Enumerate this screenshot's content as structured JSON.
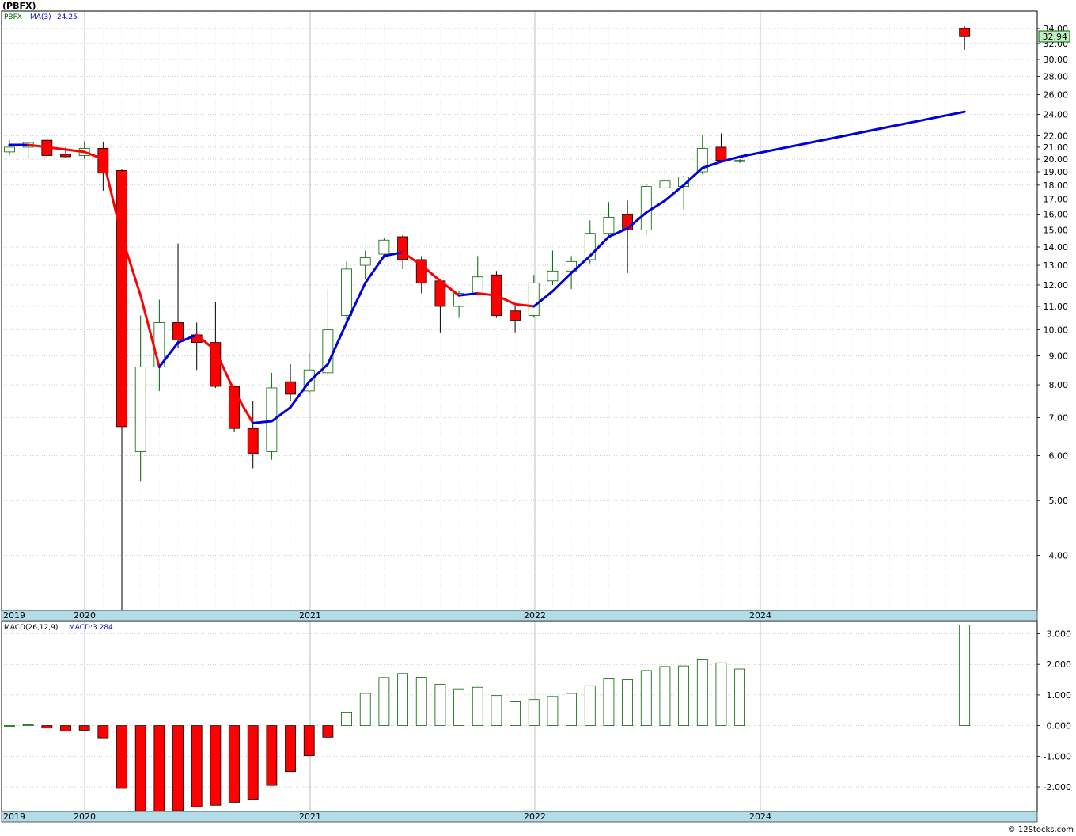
{
  "header": {
    "symbol_title": "(PBFX)",
    "price_legend_symbol": "PBFX",
    "ma_label": "MA(3)",
    "ma_value": "24.25",
    "macd_label": "MACD(26,12,9)",
    "macd_value": "MACD:3.284",
    "last_price_badge": "32.94",
    "copyright": "© 12Stocks.com"
  },
  "colors": {
    "up_candle_fill": "#ffffff",
    "up_candle_stroke": "#006400",
    "down_candle_fill": "#ff0000",
    "ma_up": "#0000dd",
    "ma_down": "#ff0000",
    "macd_pos_stroke": "#006400",
    "macd_neg_fill": "#ff0000",
    "axis_band": "#b4dbe8",
    "grid": "#a0a0a0"
  },
  "chart_data": [
    {
      "type": "candlestick",
      "title": "(PBFX)",
      "scale": "log",
      "ylim": [
        3.2,
        36.5
      ],
      "x_axis_labels": [
        "2019",
        "2020",
        "2021",
        "2022",
        "2024"
      ],
      "y_tick_labels": [
        "34.00",
        "32.00",
        "30.00",
        "28.00",
        "26.00",
        "24.00",
        "22.00",
        "21.00",
        "20.00",
        "19.00",
        "18.00",
        "17.00",
        "16.00",
        "15.00",
        "14.00",
        "13.00",
        "12.00",
        "11.00",
        "10.00",
        "9.00",
        "8.00",
        "7.00",
        "6.00",
        "5.00",
        "4.00"
      ],
      "grid": true,
      "candles": [
        {
          "date": "2019-09",
          "open": 20.6,
          "high": 21.6,
          "low": 20.3,
          "close": 21.0
        },
        {
          "date": "2019-10",
          "open": 21.0,
          "high": 21.5,
          "low": 20.1,
          "close": 21.4
        },
        {
          "date": "2019-11",
          "open": 21.6,
          "high": 21.7,
          "low": 20.1,
          "close": 20.3
        },
        {
          "date": "2019-12",
          "open": 20.4,
          "high": 21.0,
          "low": 20.1,
          "close": 20.2
        },
        {
          "date": "2020-01",
          "open": 20.3,
          "high": 21.5,
          "low": 20.0,
          "close": 20.9
        },
        {
          "date": "2020-02",
          "open": 20.9,
          "high": 21.4,
          "low": 17.6,
          "close": 18.9
        },
        {
          "date": "2020-03",
          "open": 19.1,
          "high": 19.2,
          "low": 3.2,
          "close": 6.75
        },
        {
          "date": "2020-04",
          "open": 6.1,
          "high": 10.6,
          "low": 5.4,
          "close": 8.6
        },
        {
          "date": "2020-05",
          "open": 8.6,
          "high": 11.3,
          "low": 7.8,
          "close": 10.3
        },
        {
          "date": "2020-06",
          "open": 10.3,
          "high": 14.2,
          "low": 9.3,
          "close": 9.6
        },
        {
          "date": "2020-07",
          "open": 9.8,
          "high": 10.3,
          "low": 8.5,
          "close": 9.5
        },
        {
          "date": "2020-08",
          "open": 9.5,
          "high": 11.2,
          "low": 7.9,
          "close": 7.95
        },
        {
          "date": "2020-09",
          "open": 7.95,
          "high": 7.95,
          "low": 6.6,
          "close": 6.7
        },
        {
          "date": "2020-10",
          "open": 6.7,
          "high": 7.5,
          "low": 5.7,
          "close": 6.05
        },
        {
          "date": "2020-11",
          "open": 6.1,
          "high": 8.4,
          "low": 5.9,
          "close": 7.9
        },
        {
          "date": "2020-12",
          "open": 8.1,
          "high": 8.7,
          "low": 7.5,
          "close": 7.7
        },
        {
          "date": "2021-01",
          "open": 7.8,
          "high": 9.1,
          "low": 7.7,
          "close": 8.5
        },
        {
          "date": "2021-02",
          "open": 8.4,
          "high": 11.8,
          "low": 8.3,
          "close": 10.0
        },
        {
          "date": "2021-03",
          "open": 10.6,
          "high": 13.2,
          "low": 10.3,
          "close": 12.8
        },
        {
          "date": "2021-04",
          "open": 13.0,
          "high": 13.8,
          "low": 12.3,
          "close": 13.4
        },
        {
          "date": "2021-05",
          "open": 13.6,
          "high": 14.5,
          "low": 13.4,
          "close": 14.4
        },
        {
          "date": "2021-06",
          "open": 14.6,
          "high": 14.7,
          "low": 12.8,
          "close": 13.3
        },
        {
          "date": "2021-07",
          "open": 13.3,
          "high": 13.5,
          "low": 11.6,
          "close": 12.1
        },
        {
          "date": "2021-08",
          "open": 12.2,
          "high": 12.3,
          "low": 9.9,
          "close": 11.0
        },
        {
          "date": "2021-09",
          "open": 11.0,
          "high": 11.7,
          "low": 10.5,
          "close": 11.6
        },
        {
          "date": "2021-10",
          "open": 11.6,
          "high": 13.5,
          "low": 11.5,
          "close": 12.4
        },
        {
          "date": "2021-11",
          "open": 12.5,
          "high": 12.7,
          "low": 10.5,
          "close": 10.6
        },
        {
          "date": "2021-12",
          "open": 10.8,
          "high": 11.0,
          "low": 9.9,
          "close": 10.4
        },
        {
          "date": "2022-01",
          "open": 10.6,
          "high": 12.5,
          "low": 10.5,
          "close": 12.1
        },
        {
          "date": "2022-02",
          "open": 12.2,
          "high": 13.8,
          "low": 12.0,
          "close": 12.7
        },
        {
          "date": "2022-03",
          "open": 12.7,
          "high": 13.5,
          "low": 11.8,
          "close": 13.2
        },
        {
          "date": "2022-04",
          "open": 13.3,
          "high": 15.6,
          "low": 13.1,
          "close": 14.8
        },
        {
          "date": "2022-05",
          "open": 14.8,
          "high": 16.8,
          "low": 14.6,
          "close": 15.8
        },
        {
          "date": "2022-06",
          "open": 16.0,
          "high": 16.9,
          "low": 12.6,
          "close": 15.0
        },
        {
          "date": "2022-07",
          "open": 15.0,
          "high": 18.1,
          "low": 14.7,
          "close": 17.9
        },
        {
          "date": "2022-08",
          "open": 17.8,
          "high": 19.2,
          "low": 17.3,
          "close": 18.3
        },
        {
          "date": "2022-09",
          "open": 17.9,
          "high": 18.7,
          "low": 16.3,
          "close": 18.6
        },
        {
          "date": "2022-10",
          "open": 19.0,
          "high": 22.1,
          "low": 18.8,
          "close": 20.9
        },
        {
          "date": "2022-11",
          "open": 21.0,
          "high": 22.2,
          "low": 19.8,
          "close": 19.9
        },
        {
          "date": "2022-12",
          "open": 19.9,
          "high": 20.0,
          "low": 19.7,
          "close": 19.9
        },
        {
          "date": "2023-12",
          "open": 34.0,
          "high": 34.3,
          "low": 31.2,
          "close": 32.9
        }
      ],
      "ma_series": {
        "name": "MA(3)",
        "points": [
          {
            "date": "2019-09",
            "value": 21.2
          },
          {
            "date": "2019-10",
            "value": 21.2
          },
          {
            "date": "2019-11",
            "value": 21.0
          },
          {
            "date": "2019-12",
            "value": 20.8
          },
          {
            "date": "2020-01",
            "value": 20.6
          },
          {
            "date": "2020-02",
            "value": 20.0
          },
          {
            "date": "2020-03",
            "value": 14.6
          },
          {
            "date": "2020-04",
            "value": 11.5
          },
          {
            "date": "2020-05",
            "value": 8.6
          },
          {
            "date": "2020-06",
            "value": 9.5
          },
          {
            "date": "2020-07",
            "value": 9.8
          },
          {
            "date": "2020-08",
            "value": 9.2
          },
          {
            "date": "2020-09",
            "value": 7.8
          },
          {
            "date": "2020-10",
            "value": 6.85
          },
          {
            "date": "2020-11",
            "value": 6.9
          },
          {
            "date": "2020-12",
            "value": 7.3
          },
          {
            "date": "2021-01",
            "value": 8.1
          },
          {
            "date": "2021-02",
            "value": 8.7
          },
          {
            "date": "2021-03",
            "value": 10.3
          },
          {
            "date": "2021-04",
            "value": 12.1
          },
          {
            "date": "2021-05",
            "value": 13.5
          },
          {
            "date": "2021-06",
            "value": 13.7
          },
          {
            "date": "2021-07",
            "value": 13.0
          },
          {
            "date": "2021-08",
            "value": 12.2
          },
          {
            "date": "2021-09",
            "value": 11.5
          },
          {
            "date": "2021-10",
            "value": 11.6
          },
          {
            "date": "2021-11",
            "value": 11.5
          },
          {
            "date": "2021-12",
            "value": 11.1
          },
          {
            "date": "2022-01",
            "value": 11.0
          },
          {
            "date": "2022-02",
            "value": 11.7
          },
          {
            "date": "2022-03",
            "value": 12.6
          },
          {
            "date": "2022-04",
            "value": 13.5
          },
          {
            "date": "2022-05",
            "value": 14.6
          },
          {
            "date": "2022-06",
            "value": 15.1
          },
          {
            "date": "2022-07",
            "value": 16.1
          },
          {
            "date": "2022-08",
            "value": 16.9
          },
          {
            "date": "2022-09",
            "value": 18.0
          },
          {
            "date": "2022-10",
            "value": 19.3
          },
          {
            "date": "2022-11",
            "value": 19.8
          },
          {
            "date": "2022-12",
            "value": 20.2
          },
          {
            "date": "2023-12",
            "value": 24.25
          }
        ]
      }
    },
    {
      "type": "bar",
      "title": "MACD(26,12,9)",
      "ylim": [
        -2.8,
        3.4
      ],
      "y_tick_labels": [
        "3.000",
        "2.000",
        "1.000",
        "0.000",
        "-1.000",
        "-2.000"
      ],
      "grid": true,
      "x_axis_labels": [
        "2019",
        "2020",
        "2021",
        "2022",
        "2024"
      ],
      "bars": [
        {
          "date": "2019-09",
          "value": 0.0
        },
        {
          "date": "2019-10",
          "value": 0.03
        },
        {
          "date": "2019-11",
          "value": -0.08
        },
        {
          "date": "2019-12",
          "value": -0.18
        },
        {
          "date": "2020-01",
          "value": -0.15
        },
        {
          "date": "2020-02",
          "value": -0.4
        },
        {
          "date": "2020-03",
          "value": -2.05
        },
        {
          "date": "2020-04",
          "value": -2.78
        },
        {
          "date": "2020-05",
          "value": -2.8
        },
        {
          "date": "2020-06",
          "value": -2.78
        },
        {
          "date": "2020-07",
          "value": -2.65
        },
        {
          "date": "2020-08",
          "value": -2.6
        },
        {
          "date": "2020-09",
          "value": -2.5
        },
        {
          "date": "2020-10",
          "value": -2.4
        },
        {
          "date": "2020-11",
          "value": -1.95
        },
        {
          "date": "2020-12",
          "value": -1.5
        },
        {
          "date": "2021-01",
          "value": -0.98
        },
        {
          "date": "2021-02",
          "value": -0.38
        },
        {
          "date": "2021-03",
          "value": 0.42
        },
        {
          "date": "2021-04",
          "value": 1.05
        },
        {
          "date": "2021-05",
          "value": 1.57
        },
        {
          "date": "2021-06",
          "value": 1.7
        },
        {
          "date": "2021-07",
          "value": 1.58
        },
        {
          "date": "2021-08",
          "value": 1.35
        },
        {
          "date": "2021-09",
          "value": 1.2
        },
        {
          "date": "2021-10",
          "value": 1.25
        },
        {
          "date": "2021-11",
          "value": 0.98
        },
        {
          "date": "2021-12",
          "value": 0.78
        },
        {
          "date": "2022-01",
          "value": 0.85
        },
        {
          "date": "2022-02",
          "value": 0.95
        },
        {
          "date": "2022-03",
          "value": 1.05
        },
        {
          "date": "2022-04",
          "value": 1.3
        },
        {
          "date": "2022-05",
          "value": 1.53
        },
        {
          "date": "2022-06",
          "value": 1.5
        },
        {
          "date": "2022-07",
          "value": 1.8
        },
        {
          "date": "2022-08",
          "value": 1.93
        },
        {
          "date": "2022-09",
          "value": 1.95
        },
        {
          "date": "2022-10",
          "value": 2.15
        },
        {
          "date": "2022-11",
          "value": 2.05
        },
        {
          "date": "2022-12",
          "value": 1.85
        },
        {
          "date": "2023-12",
          "value": 3.284
        }
      ]
    }
  ]
}
